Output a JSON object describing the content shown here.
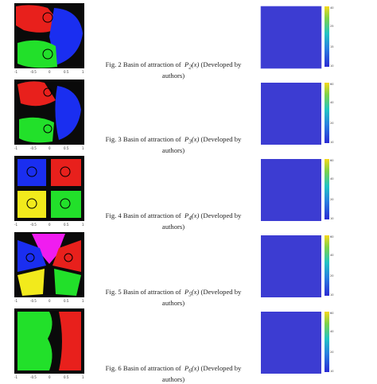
{
  "figures": [
    {
      "caption_prefix": "Fig. 2 Basin of attraction of",
      "poly_label": "P",
      "poly_sub": "2",
      "poly_arg": "(x)",
      "caption_suffix": "(Developed by",
      "caption_line2": "authors)",
      "basin_colors": [
        "#e8201c",
        "#1a2ef0",
        "#22e02a",
        "#0a0a0a"
      ],
      "colorbar_ticks": [
        "40",
        "35",
        "30",
        "25",
        "20",
        "15",
        "10"
      ]
    },
    {
      "caption_prefix": "Fig. 3 Basin of attraction of",
      "poly_label": "P",
      "poly_sub": "3",
      "poly_arg": "(x)",
      "caption_suffix": "(Developed by",
      "caption_line2": "authors)",
      "basin_colors": [
        "#e8201c",
        "#1a2ef0",
        "#22e02a",
        "#0a0a0a"
      ],
      "colorbar_ticks": [
        "60",
        "50",
        "40",
        "30",
        "20",
        "10"
      ]
    },
    {
      "caption_prefix": "Fig. 4 Basin of attraction of",
      "poly_label": "P",
      "poly_sub": "4",
      "poly_arg": "(x)",
      "caption_suffix": "(Developed by",
      "caption_line2": "authors)",
      "basin_colors": [
        "#1a2ef0",
        "#e8201c",
        "#f2ea1c",
        "#22e02a",
        "#0a0a0a"
      ],
      "colorbar_ticks": [
        "60",
        "50",
        "40",
        "30",
        "20",
        "10"
      ]
    },
    {
      "caption_prefix": "Fig. 5 Basin of attraction of",
      "poly_label": "P",
      "poly_sub": "5",
      "poly_arg": "(x)",
      "caption_suffix": "(Developed by",
      "caption_line2": "authors)",
      "basin_colors": [
        "#f01cf0",
        "#1a2ef0",
        "#e8201c",
        "#f2ea1c",
        "#22e02a",
        "#0a0a0a"
      ],
      "colorbar_ticks": [
        "60",
        "50",
        "40",
        "30",
        "20",
        "10"
      ]
    },
    {
      "caption_prefix": "Fig. 6 Basin of attraction of",
      "poly_label": "P",
      "poly_sub": "6",
      "poly_arg": "(x)",
      "caption_suffix": "(Developed by",
      "caption_line2": "authors)",
      "basin_colors": [
        "#22e02a",
        "#e8201c",
        "#0a0a0a"
      ],
      "colorbar_ticks": [
        "60",
        "50",
        "40",
        "30",
        "20",
        "10"
      ]
    }
  ],
  "axis_ticks": [
    "-1",
    "-0.5",
    "0",
    "0.5",
    "1"
  ],
  "colorbar_gradient": [
    "#2b2bd4",
    "#2a7fe0",
    "#22c4c4",
    "#7dd24a",
    "#f6d81c"
  ]
}
